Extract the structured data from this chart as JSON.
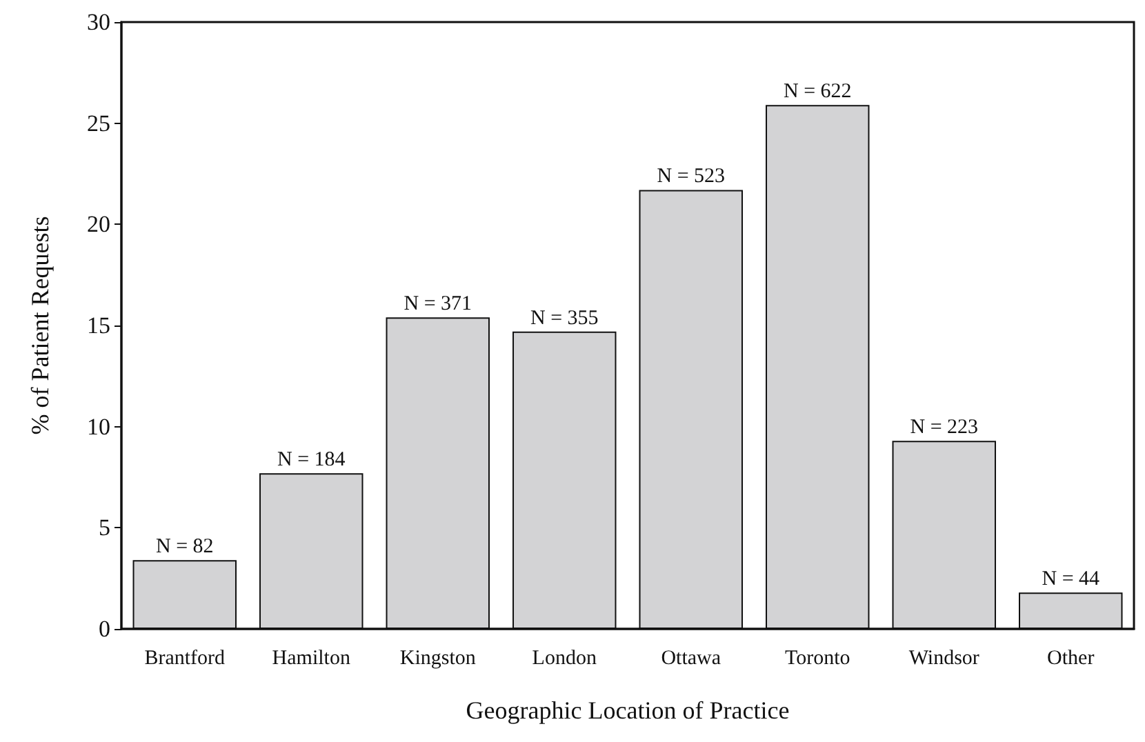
{
  "chart_data": {
    "type": "bar",
    "xlabel": "Geographic Location of Practice",
    "ylabel": "% of Patient Requests",
    "categories": [
      "Brantford",
      "Hamilton",
      "Kingston",
      "London",
      "Ottawa",
      "Toronto",
      "Windsor",
      "Other"
    ],
    "values": [
      3.4,
      7.7,
      15.4,
      14.7,
      21.7,
      25.9,
      9.3,
      1.8
    ],
    "annotations": [
      {
        "text": "N = 82",
        "x": "Brantford",
        "y": 3.4
      },
      {
        "text": "N = 184",
        "x": "Hamilton",
        "y": 7.7
      },
      {
        "text": "N = 371",
        "x": "Kingston",
        "y": 15.4
      },
      {
        "text": "N = 355",
        "x": "London",
        "y": 14.7
      },
      {
        "text": "N = 523",
        "x": "Ottawa",
        "y": 21.7
      },
      {
        "text": "N = 622",
        "x": "Toronto",
        "y": 25.9
      },
      {
        "text": "N = 223",
        "x": "Windsor",
        "y": 9.3
      },
      {
        "text": "N = 44",
        "x": "Other",
        "y": 1.8
      }
    ],
    "color": "#d3d3d5",
    "ylim": [
      0,
      30
    ],
    "yticks": [
      0,
      5,
      10,
      15,
      20,
      25,
      30
    ],
    "grid": false
  }
}
